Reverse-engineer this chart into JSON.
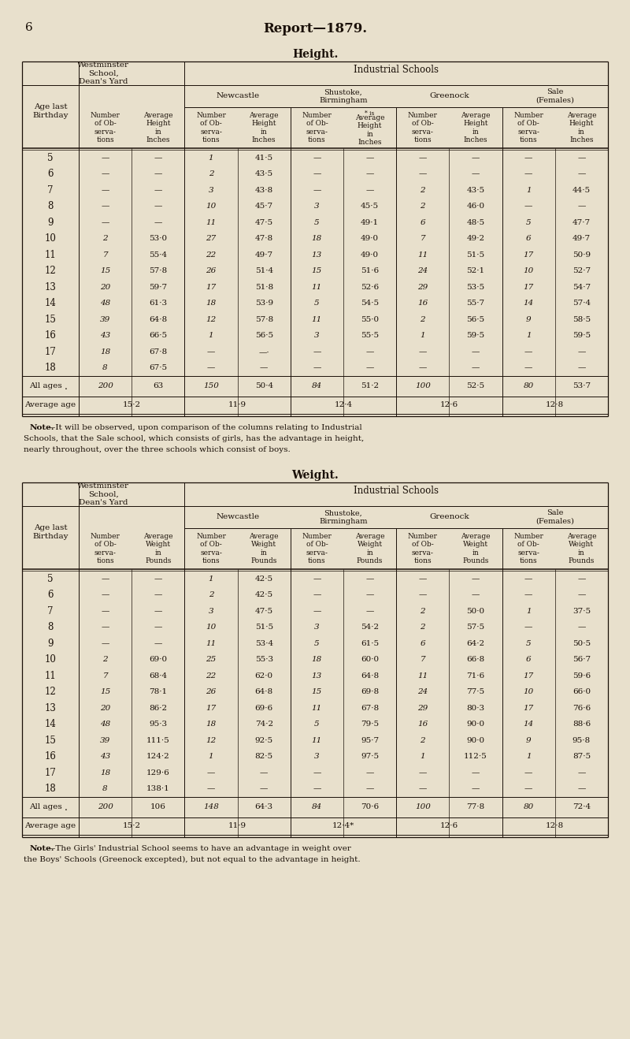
{
  "page_num": "6",
  "report_title": "Report—1879.",
  "bg_color": "#e8e0cc",
  "text_color": "#1a1008",
  "height_table": {
    "title": "Height.",
    "ages": [
      5,
      6,
      7,
      8,
      9,
      10,
      11,
      12,
      13,
      14,
      15,
      16,
      17,
      18
    ],
    "data": {
      "westminster": [
        [
          "—",
          "—"
        ],
        [
          "—",
          "—"
        ],
        [
          "—",
          "—"
        ],
        [
          "—",
          "—"
        ],
        [
          "—",
          "—"
        ],
        [
          "2",
          "53·0"
        ],
        [
          "7",
          "55·4"
        ],
        [
          "15",
          "57·8"
        ],
        [
          "20",
          "59·7"
        ],
        [
          "48",
          "61·3"
        ],
        [
          "39",
          "64·8"
        ],
        [
          "43",
          "66·5"
        ],
        [
          "18",
          "67·8"
        ],
        [
          "8",
          "67·5"
        ]
      ],
      "newcastle": [
        [
          "1",
          "41·5"
        ],
        [
          "2",
          "43·5"
        ],
        [
          "3",
          "43·8"
        ],
        [
          "10",
          "45·7"
        ],
        [
          "11",
          "47·5"
        ],
        [
          "27",
          "47·8"
        ],
        [
          "22",
          "49·7"
        ],
        [
          "26",
          "51·4"
        ],
        [
          "17",
          "51·8"
        ],
        [
          "18",
          "53·9"
        ],
        [
          "12",
          "57·8"
        ],
        [
          "1",
          "56·5"
        ],
        [
          "—",
          "—·"
        ],
        [
          "—",
          "—"
        ]
      ],
      "shustoke": [
        [
          "—",
          "—"
        ],
        [
          "—",
          "—"
        ],
        [
          "—",
          "—"
        ],
        [
          "3",
          "45·5"
        ],
        [
          "5",
          "49·1"
        ],
        [
          "18",
          "49·0"
        ],
        [
          "13",
          "49·0"
        ],
        [
          "15",
          "51·6"
        ],
        [
          "11",
          "52·6"
        ],
        [
          "5",
          "54·5"
        ],
        [
          "11",
          "55·0"
        ],
        [
          "3",
          "55·5"
        ],
        [
          "—",
          "—"
        ],
        [
          "—",
          "—"
        ]
      ],
      "greenock": [
        [
          "—",
          "—"
        ],
        [
          "—",
          "—"
        ],
        [
          "2",
          "43·5"
        ],
        [
          "2",
          "46·0"
        ],
        [
          "6",
          "48·5"
        ],
        [
          "7",
          "49·2"
        ],
        [
          "11",
          "51·5"
        ],
        [
          "24",
          "52·1"
        ],
        [
          "29",
          "53·5"
        ],
        [
          "16",
          "55·7"
        ],
        [
          "2",
          "56·5"
        ],
        [
          "1",
          "59·5"
        ],
        [
          "—",
          "—"
        ],
        [
          "—",
          "—"
        ]
      ],
      "sale": [
        [
          "—",
          "—"
        ],
        [
          "—",
          "—"
        ],
        [
          "1",
          "44·5"
        ],
        [
          "—",
          "—"
        ],
        [
          "5",
          "47·7"
        ],
        [
          "6",
          "49·7"
        ],
        [
          "17",
          "50·9"
        ],
        [
          "10",
          "52·7"
        ],
        [
          "17",
          "54·7"
        ],
        [
          "14",
          "57·4"
        ],
        [
          "9",
          "58·5"
        ],
        [
          "1",
          "59·5"
        ],
        [
          "—",
          "—"
        ],
        [
          "—",
          "—"
        ]
      ]
    },
    "all_ages": [
      "200",
      "63",
      "150",
      "50·4",
      "84",
      "51·2",
      "100",
      "52·5",
      "80",
      "53·7"
    ],
    "avg_age": [
      "15·2",
      "11·9",
      "12·4",
      "12·6",
      "12·8"
    ],
    "note_bold": "Note.",
    "note_rest": [
      "—It will be observed, upon comparison of the columns relating to Industrial",
      "Schools, that the Sale school, which consists of girls, has the advantage in height,",
      "nearly throughout, over the three schools which consist of boys."
    ]
  },
  "weight_table": {
    "title": "Weight.",
    "ages": [
      5,
      6,
      7,
      8,
      9,
      10,
      11,
      12,
      13,
      14,
      15,
      16,
      17,
      18
    ],
    "data": {
      "westminster": [
        [
          "—",
          "—"
        ],
        [
          "—",
          "—"
        ],
        [
          "—",
          "—"
        ],
        [
          "—",
          "—"
        ],
        [
          "—",
          "—"
        ],
        [
          "2",
          "69·0"
        ],
        [
          "7",
          "68·4"
        ],
        [
          "15",
          "78·1"
        ],
        [
          "20",
          "86·2"
        ],
        [
          "48",
          "95·3"
        ],
        [
          "39",
          "111·5"
        ],
        [
          "43",
          "124·2"
        ],
        [
          "18",
          "129·6"
        ],
        [
          "8",
          "138·1"
        ]
      ],
      "newcastle": [
        [
          "1",
          "42·5"
        ],
        [
          "2",
          "42·5"
        ],
        [
          "3",
          "47·5"
        ],
        [
          "10",
          "51·5"
        ],
        [
          "11",
          "53·4"
        ],
        [
          "25",
          "55·3"
        ],
        [
          "22",
          "62·0"
        ],
        [
          "26",
          "64·8"
        ],
        [
          "17",
          "69·6"
        ],
        [
          "18",
          "74·2"
        ],
        [
          "12",
          "92·5"
        ],
        [
          "1",
          "82·5"
        ],
        [
          "—",
          "—"
        ],
        [
          "—",
          "—"
        ]
      ],
      "shustoke": [
        [
          "—",
          "—"
        ],
        [
          "—",
          "—"
        ],
        [
          "—",
          "—"
        ],
        [
          "3",
          "54·2"
        ],
        [
          "5",
          "61·5"
        ],
        [
          "18",
          "60·0"
        ],
        [
          "13",
          "64·8"
        ],
        [
          "15",
          "69·8"
        ],
        [
          "11",
          "67·8"
        ],
        [
          "5",
          "79·5"
        ],
        [
          "11",
          "95·7"
        ],
        [
          "3",
          "97·5"
        ],
        [
          "—",
          "—"
        ],
        [
          "—",
          "—"
        ]
      ],
      "greenock": [
        [
          "—",
          "—"
        ],
        [
          "—",
          "—"
        ],
        [
          "2",
          "50·0"
        ],
        [
          "2",
          "57·5"
        ],
        [
          "6",
          "64·2"
        ],
        [
          "7",
          "66·8"
        ],
        [
          "11",
          "71·6"
        ],
        [
          "24",
          "77·5"
        ],
        [
          "29",
          "80·3"
        ],
        [
          "16",
          "90·0"
        ],
        [
          "2",
          "90·0"
        ],
        [
          "1",
          "112·5"
        ],
        [
          "—",
          "—"
        ],
        [
          "—",
          "—"
        ]
      ],
      "sale": [
        [
          "—",
          "—"
        ],
        [
          "—",
          "—"
        ],
        [
          "1",
          "37·5"
        ],
        [
          "—",
          "—"
        ],
        [
          "5",
          "50·5"
        ],
        [
          "6",
          "56·7"
        ],
        [
          "17",
          "59·6"
        ],
        [
          "10",
          "66·0"
        ],
        [
          "17",
          "76·6"
        ],
        [
          "14",
          "88·6"
        ],
        [
          "9",
          "95·8"
        ],
        [
          "1",
          "87·5"
        ],
        [
          "—",
          "—"
        ],
        [
          "—",
          "—"
        ]
      ]
    },
    "all_ages": [
      "200",
      "106",
      "148",
      "64·3",
      "84",
      "70·6",
      "100",
      "77·8",
      "80",
      "72·4"
    ],
    "avg_age": [
      "15·2",
      "11·9",
      "12·4*",
      "12·6",
      "12·8"
    ],
    "note_bold": "Note.",
    "note_rest": [
      "—The Girls' Industrial School seems to have an advantage in weight over",
      "the Boys' Schools (Greenock excepted), but not equal to the advantage in height."
    ]
  }
}
